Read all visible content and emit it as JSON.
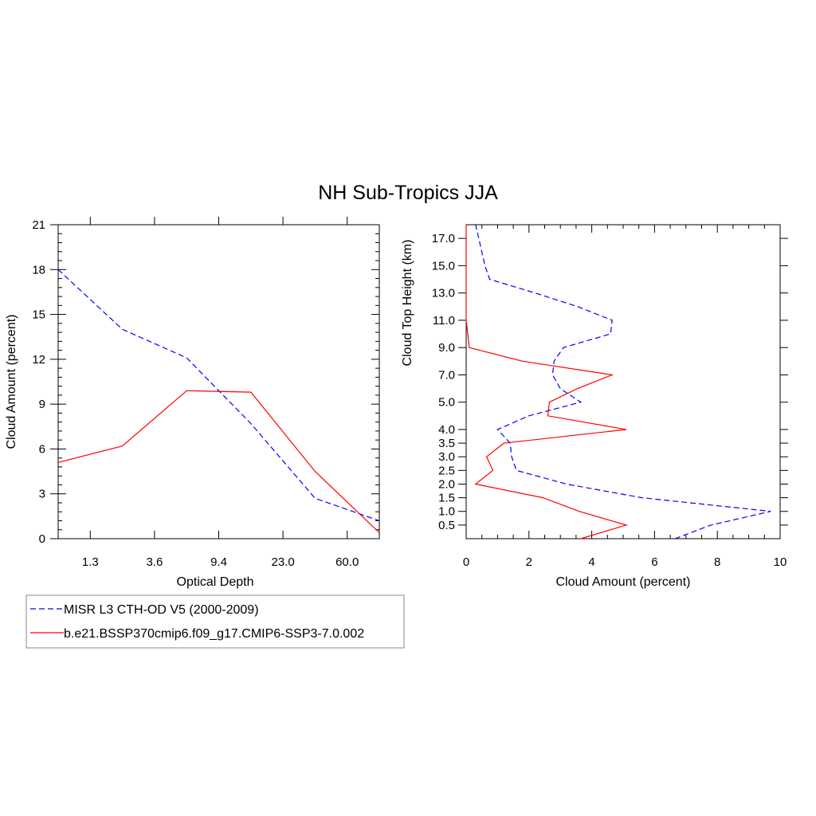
{
  "title": "NH Sub-Tropics JJA",
  "legend": {
    "placement": "bottom-left",
    "entries": [
      {
        "label": "MISR L3 CTH-OD V5 (2000-2009)",
        "color": "#0000ff",
        "dash": "dashed"
      },
      {
        "label": "b.e21.BSSP370cmip6.f09_g17.CMIP6-SSP3-7.0.002",
        "color": "#ff0000",
        "dash": "solid"
      }
    ]
  },
  "chart_data": [
    {
      "type": "line",
      "xlabel": "Optical Depth",
      "ylabel": "Cloud Amount (percent)",
      "x_categories": [
        "0.3",
        "1.3",
        "2.5",
        "3.6",
        "6.5",
        "9.4",
        "15.0",
        "23.0",
        "41.5",
        "60.0",
        "100.0"
      ],
      "x_tick_labels": [
        "1.3",
        "3.6",
        "9.4",
        "23.0",
        "60.0"
      ],
      "ylim": [
        0,
        21
      ],
      "y_ticks": [
        0,
        3,
        6,
        9,
        12,
        15,
        18,
        21
      ],
      "series": [
        {
          "name": "MISR L3 CTH-OD V5 (2000-2009)",
          "color": "#0000ff",
          "dash": "dashed",
          "x": [
            "0.3",
            "2.5",
            "6.5",
            "15.0",
            "41.5",
            "100.0"
          ],
          "values": [
            18.0,
            14.0,
            12.1,
            7.7,
            2.7,
            1.2
          ]
        },
        {
          "name": "b.e21.BSSP370cmip6.f09_g17.CMIP6-SSP3-7.0.002",
          "color": "#ff0000",
          "dash": "solid",
          "x": [
            "0.3",
            "2.5",
            "6.5",
            "15.0",
            "41.5",
            "100.0"
          ],
          "values": [
            5.1,
            6.2,
            9.9,
            9.8,
            4.5,
            0.4
          ]
        }
      ]
    },
    {
      "type": "line",
      "xlabel": "Cloud Amount (percent)",
      "ylabel": "Cloud Top Height (km)",
      "xlim": [
        0,
        10
      ],
      "x_ticks": [
        0,
        2,
        4,
        6,
        8,
        10
      ],
      "y_categories": [
        "0.0",
        "0.5",
        "1.0",
        "1.5",
        "2.0",
        "2.5",
        "3.0",
        "3.5",
        "4.0",
        "4.5",
        "5.0",
        "6.0",
        "7.0",
        "8.0",
        "9.0",
        "10.0",
        "11.0",
        "12.0",
        "13.0",
        "14.0",
        "15.0",
        "16.0",
        "17.0",
        "18.0"
      ],
      "y_tick_labels": [
        "0.5",
        "1.0",
        "1.5",
        "2.0",
        "2.5",
        "3.0",
        "3.5",
        "4.0",
        "5.0",
        "7.0",
        "9.0",
        "11.0",
        "13.0",
        "15.0",
        "17.0"
      ],
      "series": [
        {
          "name": "MISR L3 CTH-OD V5 (2000-2009)",
          "color": "#0000ff",
          "dash": "dashed",
          "heights": [
            "0.0",
            "0.5",
            "1.0",
            "1.5",
            "2.0",
            "2.5",
            "3.0",
            "3.5",
            "4.0",
            "4.5",
            "5.0",
            "6.0",
            "7.0",
            "8.0",
            "9.0",
            "10.0",
            "11.0",
            "12.0",
            "13.0",
            "14.0",
            "15.0",
            "16.0",
            "17.0",
            "18.0"
          ],
          "values": [
            6.65,
            7.8,
            9.7,
            5.6,
            3.2,
            1.6,
            1.45,
            1.4,
            1.0,
            2.0,
            3.65,
            3.0,
            2.75,
            2.8,
            3.1,
            4.6,
            4.65,
            3.55,
            2.2,
            0.75,
            0.6,
            0.5,
            0.4,
            0.3
          ]
        },
        {
          "name": "b.e21.BSSP370cmip6.f09_g17.CMIP6-SSP3-7.0.002",
          "color": "#ff0000",
          "dash": "solid",
          "heights": [
            "0.0",
            "0.5",
            "1.0",
            "1.5",
            "2.0",
            "2.5",
            "3.0",
            "3.5",
            "4.0",
            "4.5",
            "5.0",
            "6.0",
            "7.0",
            "8.0",
            "9.0",
            "10.0",
            "11.0",
            "12.0",
            "13.0",
            "14.0",
            "15.0",
            "16.0",
            "17.0",
            "18.0"
          ],
          "values": [
            3.65,
            5.1,
            3.6,
            2.45,
            0.3,
            0.85,
            0.65,
            1.2,
            5.1,
            2.6,
            2.65,
            3.55,
            4.65,
            1.8,
            0.1,
            0.05,
            0.0,
            0.0,
            0.0,
            0.0,
            0.0,
            0.0,
            0.0,
            0.0
          ]
        }
      ]
    }
  ]
}
